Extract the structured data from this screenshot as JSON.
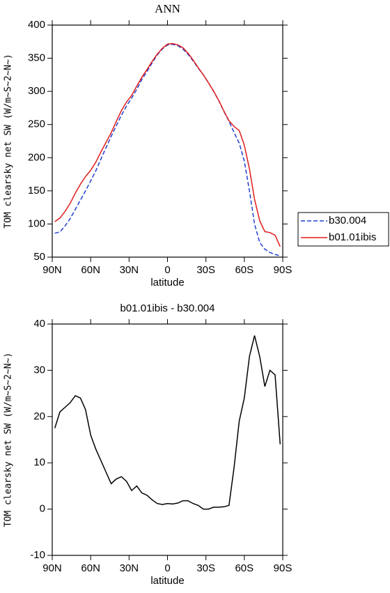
{
  "chart_data": [
    {
      "type": "line",
      "title": "ANN",
      "xlabel": "latitude",
      "ylabel": "TOM clearsky net SW (W/m~S~2~N~)",
      "x": [
        88,
        84,
        80,
        76,
        72,
        68,
        64,
        60,
        56,
        52,
        48,
        44,
        40,
        36,
        32,
        28,
        24,
        20,
        16,
        12,
        8,
        4,
        0,
        -4,
        -8,
        -12,
        -16,
        -20,
        -24,
        -28,
        -32,
        -36,
        -40,
        -44,
        -48,
        -52,
        -56,
        -60,
        -64,
        -68,
        -72,
        -76,
        -80,
        -84,
        -88
      ],
      "series": [
        {
          "name": "b30.004",
          "color": "#1f3fd0",
          "dash": true,
          "values": [
            86,
            88,
            97,
            108,
            122,
            136,
            150,
            165,
            180,
            198,
            215,
            232,
            248,
            264,
            278,
            290,
            303,
            318,
            330,
            343,
            355,
            364,
            370,
            371,
            369,
            364,
            356,
            346,
            335,
            325,
            313,
            300,
            286,
            270,
            255,
            238,
            222,
            195,
            150,
            100,
            72,
            62,
            57,
            54,
            52
          ]
        },
        {
          "name": "b01.01ibis",
          "color": "#e01b1b",
          "dash": false,
          "values": [
            103.5,
            109,
            119,
            131,
            146.5,
            160,
            171.5,
            181,
            193,
            208.5,
            223,
            237.5,
            254.5,
            271,
            284,
            294,
            308,
            321.5,
            333,
            345,
            356.2,
            365,
            371.2,
            372.1,
            370.3,
            365.8,
            357.8,
            347.2,
            335.8,
            325,
            313,
            300.4,
            286.4,
            270.5,
            255.8,
            247,
            241,
            219,
            183,
            137.5,
            105,
            88.5,
            87,
            83,
            66
          ]
        }
      ],
      "xlim": [
        90,
        -90
      ],
      "xticks": [
        {
          "value": 90,
          "label": "90N"
        },
        {
          "value": 60,
          "label": "60N"
        },
        {
          "value": 30,
          "label": "30N"
        },
        0,
        {
          "value": -30,
          "label": "30S"
        },
        {
          "value": -60,
          "label": "60S"
        },
        {
          "value": -90,
          "label": "90S"
        }
      ],
      "ylim": [
        50,
        400
      ],
      "yticks": [
        50,
        100,
        150,
        200,
        250,
        300,
        350,
        400
      ],
      "legend": "right"
    },
    {
      "type": "line",
      "title": "b01.01ibis - b30.004",
      "xlabel": "latitude",
      "ylabel": "TOM clearsky net SW (W/m~S~2~N~)",
      "x": [
        88,
        84,
        80,
        76,
        72,
        68,
        64,
        60,
        56,
        52,
        48,
        44,
        40,
        36,
        32,
        28,
        24,
        20,
        16,
        12,
        8,
        4,
        0,
        -4,
        -8,
        -12,
        -16,
        -20,
        -24,
        -28,
        -32,
        -36,
        -40,
        -44,
        -48,
        -52,
        -56,
        -60,
        -64,
        -68,
        -72,
        -76,
        -80,
        -84,
        -88
      ],
      "series": [
        {
          "color": "#000000",
          "dash": false,
          "values": [
            17.5,
            21,
            22,
            23,
            24.5,
            24,
            21.5,
            16,
            13,
            10.5,
            8,
            5.5,
            6.5,
            7,
            6,
            4,
            5,
            3.5,
            3,
            2,
            1.2,
            1,
            1.2,
            1.1,
            1.3,
            1.8,
            1.8,
            1.2,
            0.8,
            0,
            0,
            0.4,
            0.4,
            0.5,
            0.8,
            9,
            19,
            24,
            33,
            37.5,
            33,
            26.5,
            30,
            29,
            14
          ]
        }
      ],
      "xlim": [
        90,
        -90
      ],
      "xticks": [
        {
          "value": 90,
          "label": "90N"
        },
        {
          "value": 60,
          "label": "60N"
        },
        {
          "value": 30,
          "label": "30N"
        },
        0,
        {
          "value": -30,
          "label": "30S"
        },
        {
          "value": -60,
          "label": "60S"
        },
        {
          "value": -90,
          "label": "90S"
        }
      ],
      "ylim": [
        -10,
        40
      ],
      "yticks": [
        -10,
        0,
        10,
        20,
        30,
        40
      ]
    }
  ]
}
